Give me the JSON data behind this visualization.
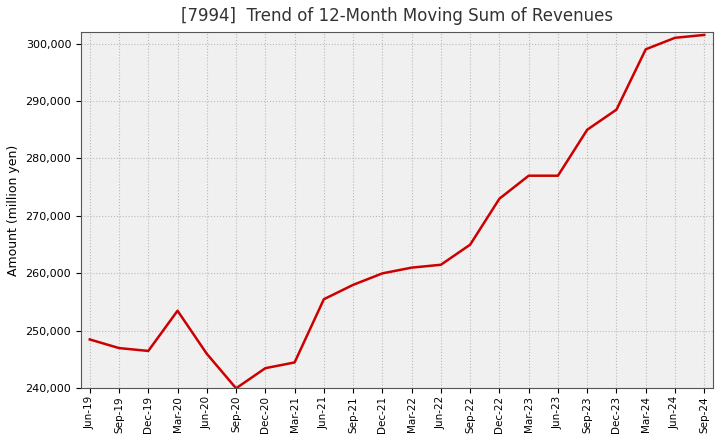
{
  "title": "[7994]  Trend of 12-Month Moving Sum of Revenues",
  "ylabel": "Amount (million yen)",
  "line_color": "#cc0000",
  "background_color": "#ffffff",
  "plot_background": "#f0f0f0",
  "grid_color": "#bbbbbb",
  "ylim": [
    240000,
    302000
  ],
  "yticks": [
    240000,
    250000,
    260000,
    270000,
    280000,
    290000,
    300000
  ],
  "x_labels": [
    "Jun-19",
    "Sep-19",
    "Dec-19",
    "Mar-20",
    "Jun-20",
    "Sep-20",
    "Dec-20",
    "Mar-21",
    "Jun-21",
    "Sep-21",
    "Dec-21",
    "Mar-22",
    "Jun-22",
    "Sep-22",
    "Dec-22",
    "Mar-23",
    "Jun-23",
    "Sep-23",
    "Dec-23",
    "Mar-24",
    "Jun-24",
    "Sep-24"
  ],
  "data_points": {
    "Jun-19": 248500,
    "Sep-19": 247000,
    "Dec-19": 246500,
    "Mar-20": 253500,
    "Jun-20": 246000,
    "Sep-20": 240000,
    "Dec-20": 243500,
    "Mar-21": 244500,
    "Jun-21": 255500,
    "Sep-21": 258000,
    "Dec-21": 260000,
    "Mar-22": 261000,
    "Jun-22": 261500,
    "Sep-22": 265000,
    "Dec-22": 273000,
    "Mar-23": 277000,
    "Jun-23": 277000,
    "Sep-23": 285000,
    "Dec-23": 288500,
    "Mar-24": 299000,
    "Jun-24": 301000,
    "Sep-24": 301500
  }
}
